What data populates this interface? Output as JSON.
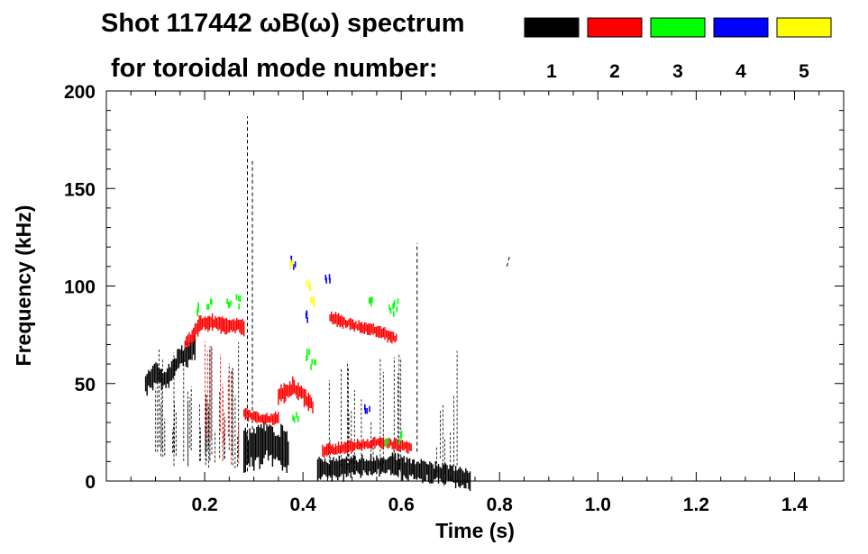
{
  "chart_data": {
    "type": "heatmap",
    "title_line1": "Shot 117442 ωB(ω) spectrum",
    "title_line2": "for toroidal mode number:",
    "xlabel": "Time (s)",
    "ylabel": "Frequency (kHz)",
    "xlim": [
      0.0,
      1.5
    ],
    "ylim": [
      0,
      200
    ],
    "x_ticks": [
      "0.2",
      "0.4",
      "0.6",
      "0.8",
      "1.0",
      "1.2",
      "1.4"
    ],
    "x_tick_values": [
      0.2,
      0.4,
      0.6,
      0.8,
      1.0,
      1.2,
      1.4
    ],
    "y_ticks": [
      "0",
      "50",
      "100",
      "150",
      "200"
    ],
    "y_tick_values": [
      0,
      50,
      100,
      150,
      200
    ],
    "legend": [
      {
        "label": "1",
        "color": "#000000"
      },
      {
        "label": "2",
        "color": "#ff0000"
      },
      {
        "label": "3",
        "color": "#00ff00"
      },
      {
        "label": "4",
        "color": "#0000ff"
      },
      {
        "label": "5",
        "color": "#ffff00"
      }
    ],
    "features": [
      {
        "mode": 1,
        "kind": "band",
        "t": [
          0.08,
          0.1,
          0.12,
          0.15,
          0.18
        ],
        "f": [
          50,
          55,
          52,
          63,
          68
        ],
        "width_khz": 10
      },
      {
        "mode": 1,
        "kind": "band",
        "t": [
          0.28,
          0.3,
          0.33,
          0.36,
          0.37
        ],
        "f": [
          15,
          18,
          20,
          18,
          16
        ],
        "width_khz": 18
      },
      {
        "mode": 1,
        "kind": "band",
        "t": [
          0.43,
          0.5,
          0.58,
          0.66,
          0.74
        ],
        "f": [
          6,
          7,
          8,
          5,
          1
        ],
        "width_khz": 9
      },
      {
        "mode": 1,
        "kind": "streaks",
        "t": [
          0.1,
          0.27
        ],
        "f": [
          15,
          75
        ],
        "count": 40
      },
      {
        "mode": 1,
        "kind": "streaks",
        "t": [
          0.44,
          0.72
        ],
        "f": [
          10,
          70
        ],
        "count": 25
      },
      {
        "mode": 1,
        "kind": "line",
        "t": [
          0.287,
          0.287
        ],
        "f": [
          5,
          187
        ]
      },
      {
        "mode": 1,
        "kind": "line",
        "t": [
          0.297,
          0.297
        ],
        "f": [
          20,
          165
        ]
      },
      {
        "mode": 1,
        "kind": "line",
        "t": [
          0.632,
          0.632
        ],
        "f": [
          15,
          122
        ]
      },
      {
        "mode": 1,
        "kind": "line",
        "t": [
          0.815,
          0.82
        ],
        "f": [
          110,
          115
        ]
      },
      {
        "mode": 2,
        "kind": "band",
        "t": [
          0.16,
          0.19,
          0.22,
          0.25,
          0.28
        ],
        "f": [
          70,
          80,
          81,
          80,
          79
        ],
        "width_khz": 7
      },
      {
        "mode": 2,
        "kind": "band",
        "t": [
          0.28,
          0.31,
          0.35
        ],
        "f": [
          35,
          32,
          32
        ],
        "width_khz": 5
      },
      {
        "mode": 2,
        "kind": "band",
        "t": [
          0.35,
          0.38,
          0.4,
          0.42
        ],
        "f": [
          44,
          48,
          44,
          38
        ],
        "width_khz": 8
      },
      {
        "mode": 2,
        "kind": "band",
        "t": [
          0.455,
          0.5,
          0.55,
          0.59
        ],
        "f": [
          84,
          80,
          77,
          73
        ],
        "width_khz": 5
      },
      {
        "mode": 2,
        "kind": "band",
        "t": [
          0.44,
          0.5,
          0.56,
          0.62
        ],
        "f": [
          15,
          18,
          20,
          17
        ],
        "width_khz": 5
      },
      {
        "mode": 2,
        "kind": "streaks",
        "t": [
          0.2,
          0.27
        ],
        "f": [
          25,
          78
        ],
        "count": 10
      },
      {
        "mode": 3,
        "kind": "blobs",
        "t": [
          0.19,
          0.21,
          0.25,
          0.27,
          0.41,
          0.42,
          0.54,
          0.58,
          0.59
        ],
        "f": [
          88,
          90,
          91,
          92,
          64,
          60,
          92,
          88,
          90
        ]
      },
      {
        "mode": 3,
        "kind": "blobs",
        "t": [
          0.385,
          0.57,
          0.6
        ],
        "f": [
          33,
          21,
          22
        ]
      },
      {
        "mode": 4,
        "kind": "blobs",
        "t": [
          0.38,
          0.41,
          0.45,
          0.53
        ],
        "f": [
          112,
          85,
          105,
          38
        ]
      },
      {
        "mode": 5,
        "kind": "blobs",
        "t": [
          0.375,
          0.41,
          0.42
        ],
        "f": [
          110,
          100,
          92
        ]
      }
    ]
  }
}
